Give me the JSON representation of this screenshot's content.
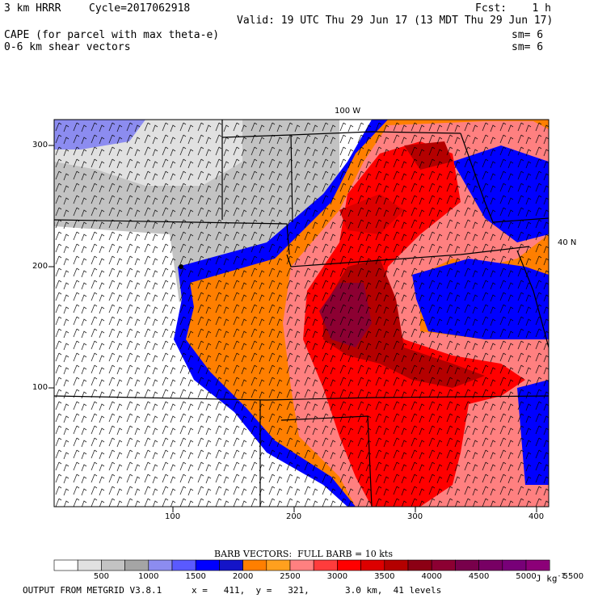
{
  "header": {
    "model": "3 km HRRR",
    "cycle": "Cycle=2017062918",
    "fcst": "Fcst:    1 h",
    "valid": "Valid: 19 UTC Thu 29 Jun 17 (13 MDT Thu 29 Jun 17)",
    "field1": "CAPE (for parcel with max theta-e)",
    "field2": "0-6 km shear vectors",
    "sm1": "sm= 6",
    "sm2": "sm= 6"
  },
  "map": {
    "top_label": "100 W",
    "right_label": "40 N",
    "y_ticks": [
      "300",
      "200",
      "100"
    ],
    "x_ticks": [
      "100",
      "200",
      "300",
      "400"
    ]
  },
  "colorbar": {
    "title": "BARB VECTORS:  FULL BARB = 10 kts",
    "colors": [
      "#ffffff",
      "#e1e1e1",
      "#c3c3c3",
      "#a5a5a5",
      "#8c8cf0",
      "#5a5aff",
      "#0000ff",
      "#1414c8",
      "#ff7f00",
      "#ffa01e",
      "#ff8080",
      "#ff3c3c",
      "#ff0000",
      "#dc0000",
      "#b40000",
      "#8c0014",
      "#8c0032",
      "#78004b",
      "#780064",
      "#780078",
      "#8c0078"
    ],
    "labels": [
      "500",
      "1000",
      "1500",
      "2000",
      "2500",
      "3000",
      "3500",
      "4000",
      "4500",
      "5000",
      "5500"
    ],
    "unit": "J kg",
    "unit_sup": "-1"
  },
  "footer": {
    "program": "OUTPUT FROM METGRID V3.8.1",
    "coords": "x =   411,  y =   321,",
    "grid": "3.0 km,  41 levels"
  }
}
